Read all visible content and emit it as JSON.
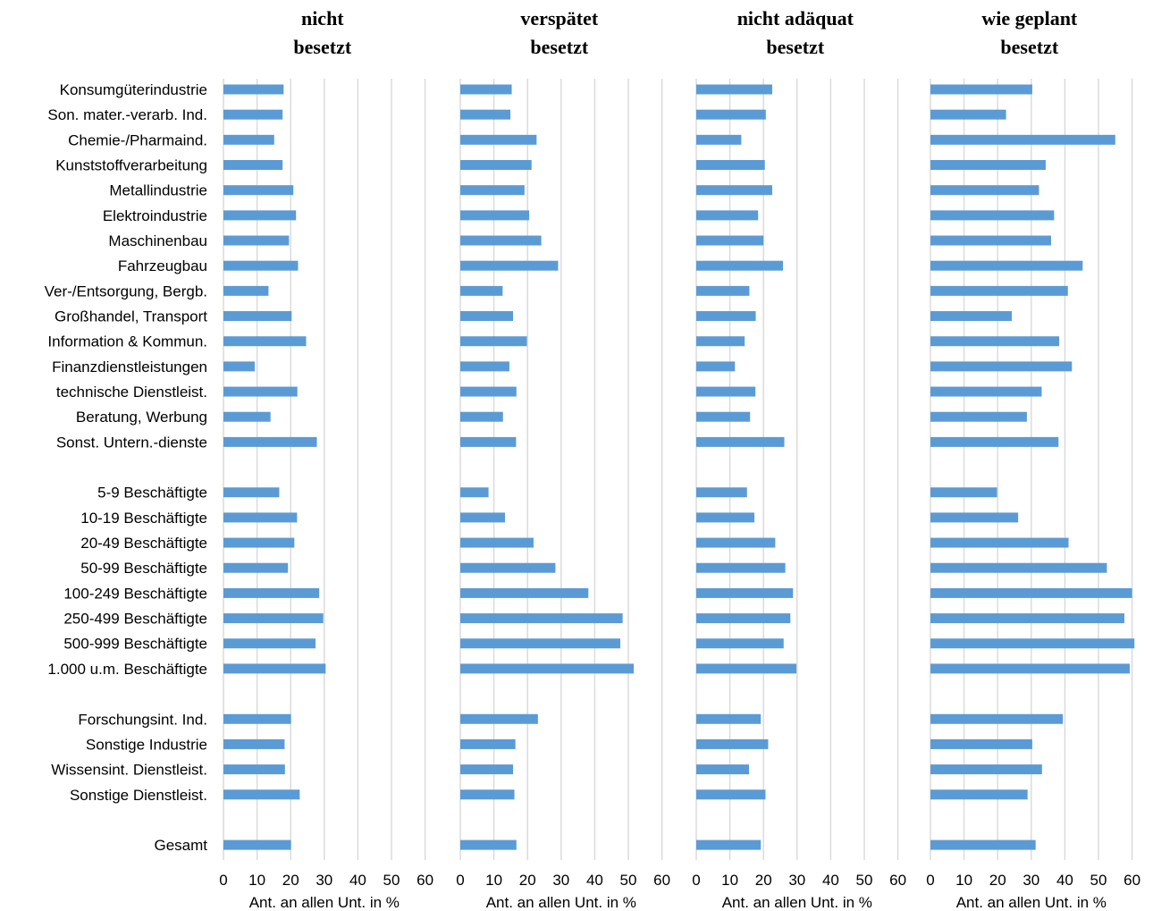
{
  "chart_data": {
    "type": "bar",
    "orientation": "horizontal",
    "categories": [
      "Konsumgüterindustrie",
      "Son. mater.-verarb. Ind.",
      "Chemie-/Pharmaind.",
      "Kunststoffverarbeitung",
      "Metallindustrie",
      "Elektroindustrie",
      "Maschinenbau",
      "Fahrzeugbau",
      "Ver-/Entsorgung, Bergb.",
      "Großhandel, Transport",
      "Information & Kommun.",
      "Finanzdienstleistungen",
      "technische Dienstleist.",
      "Beratung, Werbung",
      "Sonst. Untern.-dienste",
      "5-9 Beschäftigte",
      "10-19 Beschäftigte",
      "20-49 Beschäftigte",
      "50-99 Beschäftigte",
      "100-249 Beschäftigte",
      "250-499 Beschäftigte",
      "500-999 Beschäftigte",
      "1.000 u.m. Beschäftigte",
      "Forschungsint. Ind.",
      "Sonstige Industrie",
      "Wissensint. Dienstleist.",
      "Sonstige Dienstleist.",
      "Gesamt"
    ],
    "groups": [
      15,
      8,
      4,
      1
    ],
    "xlim": [
      0,
      60
    ],
    "xticks": [
      "0",
      "10",
      "20",
      "30",
      "40",
      "50",
      "60"
    ],
    "xlabel": "Ant. an allen Unt. in %",
    "grid": true,
    "bar_color": "#5b9bd5",
    "panels": [
      {
        "title": [
          "nicht",
          "besetzt"
        ],
        "values": [
          17.9,
          17.6,
          15.1,
          17.6,
          20.8,
          21.6,
          19.5,
          22.2,
          13.4,
          20.3,
          24.6,
          9.3,
          22.0,
          14.0,
          27.8,
          16.6,
          21.9,
          21.1,
          19.2,
          28.5,
          29.7,
          27.4,
          30.4,
          20.1,
          18.2,
          18.3,
          22.7,
          20.1
        ]
      },
      {
        "title": [
          "verspätet",
          "besetzt"
        ],
        "values": [
          15.3,
          14.9,
          22.7,
          21.2,
          19.1,
          20.5,
          24.1,
          29.1,
          12.6,
          15.7,
          19.8,
          14.6,
          16.7,
          12.7,
          16.6,
          8.4,
          13.3,
          21.8,
          28.3,
          38.1,
          48.3,
          47.6,
          51.6,
          23.1,
          16.4,
          15.7,
          16.1,
          16.7
        ]
      },
      {
        "title": [
          "nicht adäquat",
          "besetzt"
        ],
        "values": [
          22.6,
          20.7,
          13.4,
          20.4,
          22.6,
          18.4,
          20.0,
          25.8,
          15.8,
          17.7,
          14.4,
          11.5,
          17.6,
          16.0,
          26.2,
          15.1,
          17.3,
          23.5,
          26.5,
          28.8,
          28.0,
          26.0,
          29.8,
          19.2,
          21.4,
          15.7,
          20.6,
          19.2
        ]
      },
      {
        "title": [
          "wie geplant",
          "besetzt"
        ],
        "values": [
          30.3,
          22.5,
          55.0,
          34.3,
          32.3,
          36.8,
          35.9,
          45.3,
          40.9,
          24.2,
          38.3,
          42.1,
          33.1,
          28.7,
          38.1,
          19.8,
          26.1,
          41.1,
          52.5,
          60.0,
          57.7,
          60.7,
          59.3,
          39.4,
          30.3,
          33.2,
          28.9,
          31.3
        ]
      }
    ]
  }
}
